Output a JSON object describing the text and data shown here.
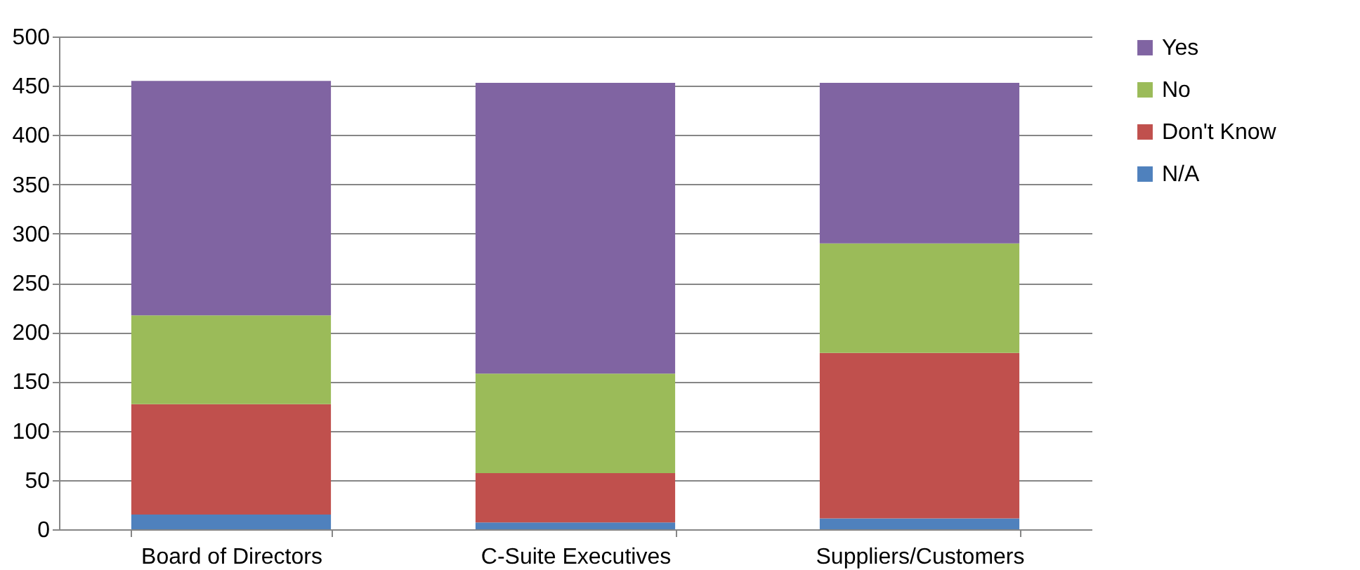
{
  "chart_data": {
    "type": "bar",
    "stacked": true,
    "categories": [
      "Board of Directors",
      "C-Suite Executives",
      "Suppliers/Customers"
    ],
    "series": [
      {
        "name": "N/A",
        "color": "#4f81bd",
        "values": [
          15,
          7,
          11
        ]
      },
      {
        "name": "Don't Know",
        "color": "#c0504d",
        "values": [
          112,
          50,
          168
        ]
      },
      {
        "name": "No",
        "color": "#9bbb59",
        "values": [
          90,
          101,
          111
        ]
      },
      {
        "name": "Yes",
        "color": "#8064a2",
        "values": [
          238,
          295,
          163
        ]
      }
    ],
    "ylim": [
      0,
      500
    ],
    "yticks": [
      0,
      50,
      100,
      150,
      200,
      250,
      300,
      350,
      400,
      450,
      500
    ],
    "grid": "y",
    "legend": "right"
  }
}
